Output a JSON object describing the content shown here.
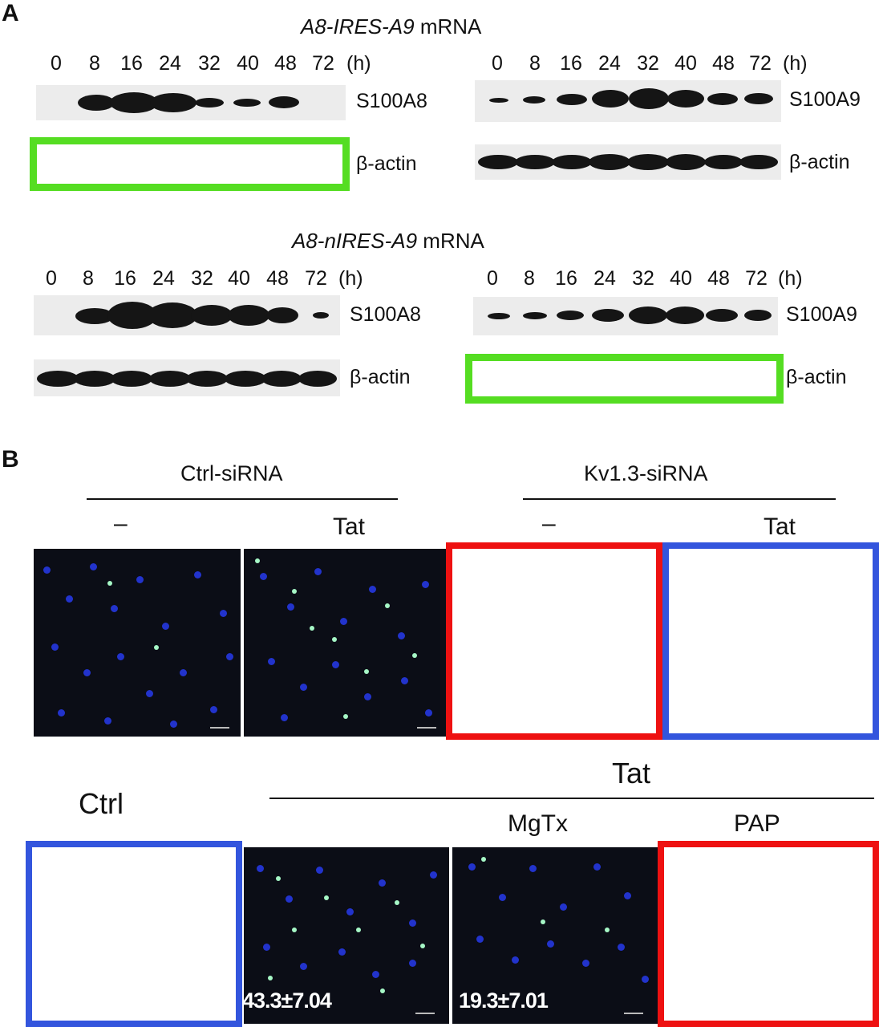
{
  "panel_a": {
    "letter": "A",
    "top": {
      "title_italic": "A8-IRES-A9",
      "title_rest": " mRNA",
      "left": {
        "ticks": [
          "0",
          "8",
          "16",
          "24",
          "32",
          "40",
          "48",
          "72"
        ],
        "unit": "(h)",
        "protein": "S100A8",
        "control": "β-actin"
      },
      "right": {
        "ticks": [
          "0",
          "8",
          "16",
          "24",
          "32",
          "40",
          "48",
          "72"
        ],
        "unit": "(h)",
        "protein": "S100A9",
        "control": "β-actin"
      }
    },
    "bottom": {
      "title_italic": "A8-nIRES-A9",
      "title_rest": " mRNA",
      "left": {
        "ticks": [
          "0",
          "8",
          "16",
          "24",
          "32",
          "40",
          "48",
          "72"
        ],
        "unit": "(h)",
        "protein": "S100A8",
        "control": "β-actin"
      },
      "right": {
        "ticks": [
          "0",
          "8",
          "16",
          "24",
          "32",
          "40",
          "48",
          "72"
        ],
        "unit": "(h)",
        "protein": "S100A9",
        "control": "β-actin"
      }
    }
  },
  "panel_b": {
    "letter": "B",
    "row1": {
      "group1": "Ctrl-siRNA",
      "group2": "Kv1.3-siRNA",
      "cond_minus": "–",
      "cond_tat": "Tat"
    },
    "row2": {
      "ctrl": "Ctrl",
      "tat": "Tat",
      "mgtx": "MgTx",
      "pap": "PAP",
      "stat_tat": "43.3±7.04",
      "stat_mgtx": "19.3±7.01"
    }
  },
  "colors": {
    "highlight_green": "#55dd22",
    "highlight_red": "#ee1111",
    "highlight_blue": "#3355dd"
  }
}
